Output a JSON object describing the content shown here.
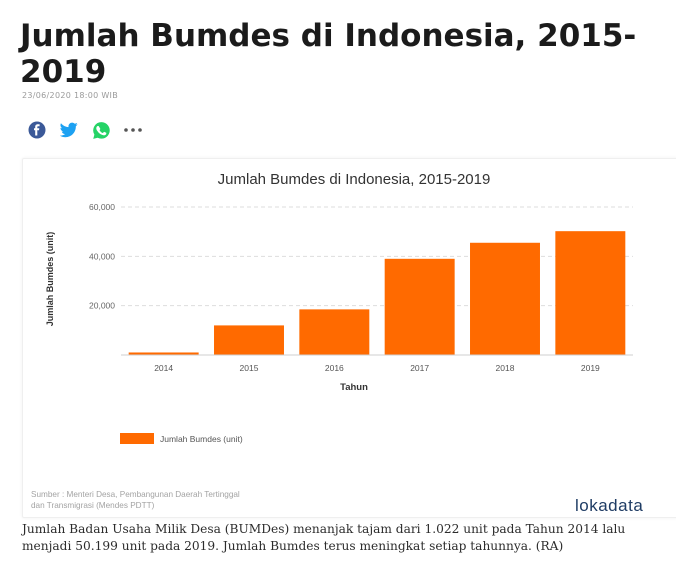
{
  "article": {
    "headline": "Jumlah Bumdes di Indonesia, 2015-2019",
    "timestamp": "23/06/2020 18:00 WIB",
    "caption": "Jumlah Badan Usaha Milik Desa (BUMDes) menanjak tajam dari 1.022 unit pada Tahun 2014 lalu menjadi 50.199 unit pada 2019. Jumlah Bumdes terus meningkat setiap tahunnya. (RA)"
  },
  "share_icons": [
    "facebook-icon",
    "twitter-icon",
    "whatsapp-icon",
    "more-icon"
  ],
  "colors": {
    "bar": "#ff6a00",
    "facebook": "#3b5998",
    "twitter": "#1da1f2",
    "whatsapp": "#25d366",
    "brand": "#1f3c64"
  },
  "source": {
    "line1": "Sumber : Menteri Desa, Pembangunan Daerah Tertinggal",
    "line2": "dan Transmigrasi (Mendes PDTT)"
  },
  "brand": "lokadata",
  "chart_data": {
    "type": "bar",
    "title": "Jumlah Bumdes di Indonesia, 2015-2019",
    "xlabel": "Tahun",
    "ylabel": "Jumlah Bumdes (unit)",
    "categories": [
      "2014",
      "2015",
      "2016",
      "2017",
      "2018",
      "2019"
    ],
    "series": [
      {
        "name": "Jumlah Bumdes (unit)",
        "values": [
          1022,
          12000,
          18500,
          39000,
          45500,
          50199
        ]
      }
    ],
    "yticks": [
      "20,000",
      "40,000",
      "60,000"
    ],
    "ytick_values": [
      20000,
      40000,
      60000
    ],
    "ylim": [
      0,
      60000
    ],
    "grid": true,
    "legend_position": "bottom-left"
  }
}
